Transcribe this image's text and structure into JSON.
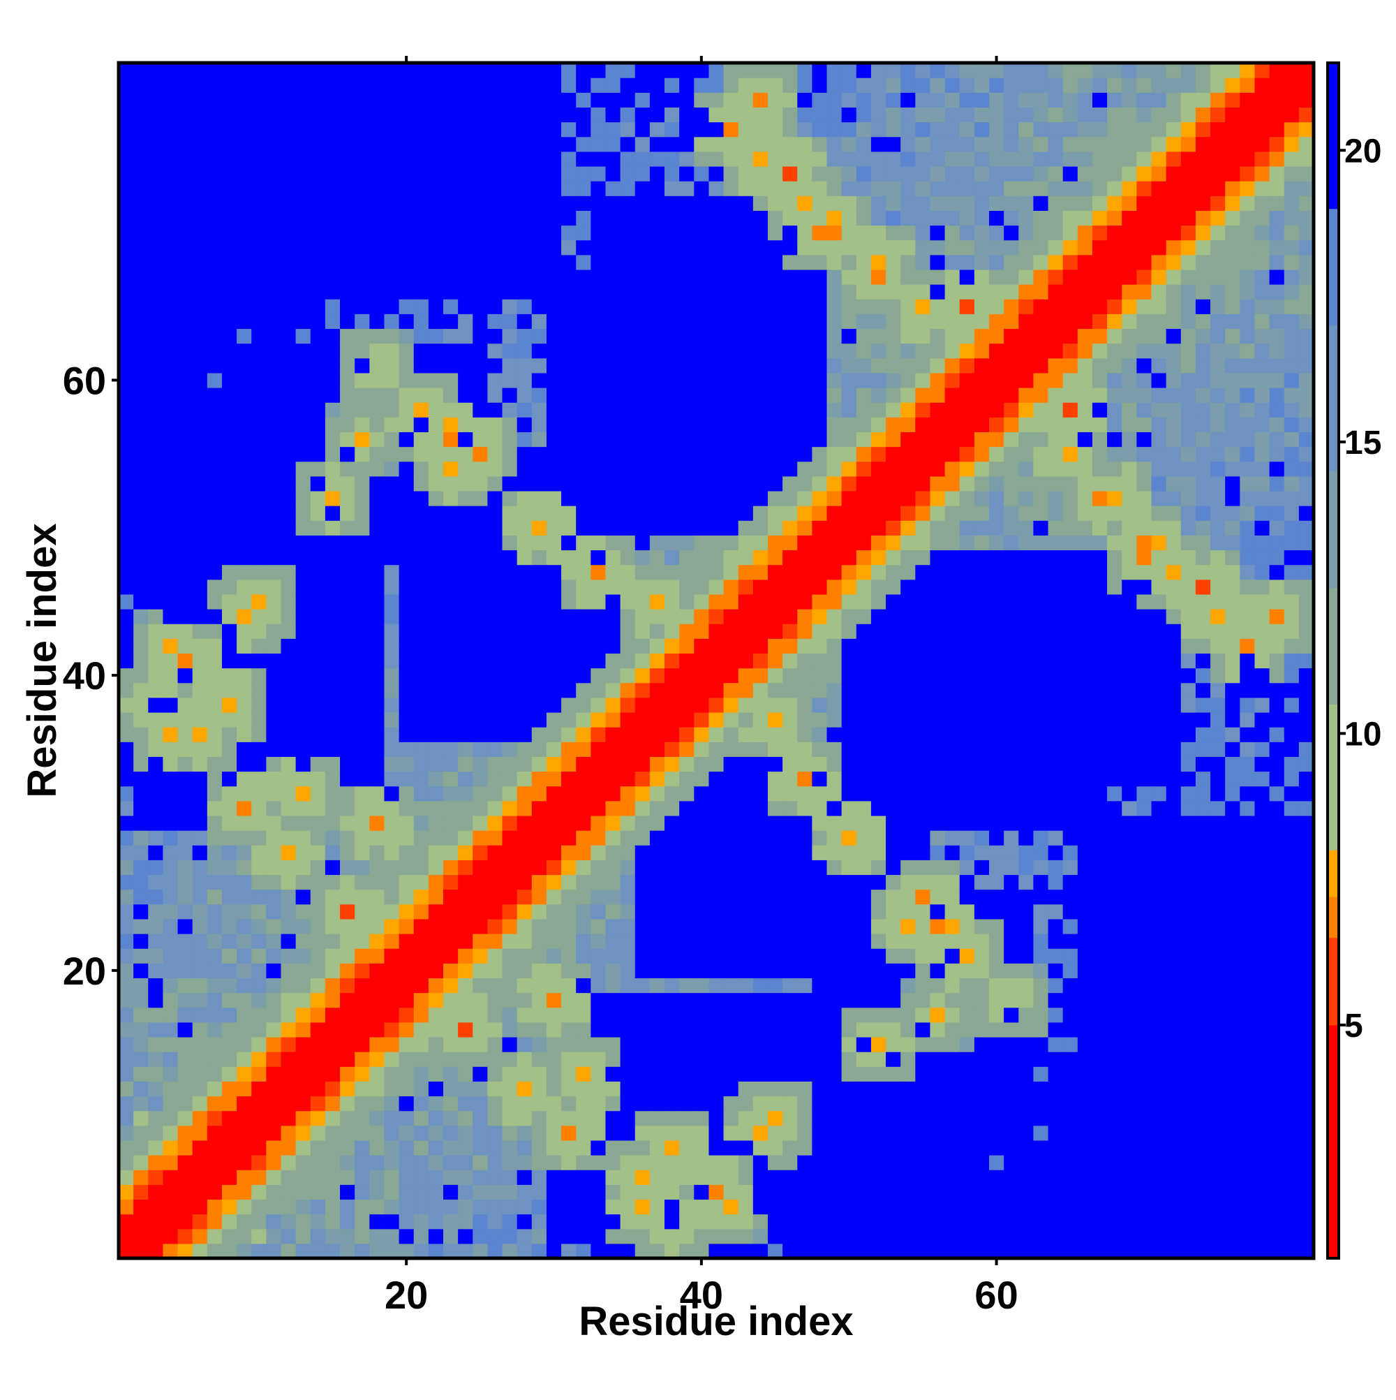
{
  "chart_data": {
    "type": "heatmap",
    "title": "",
    "xlabel": "Residue index",
    "ylabel": "Residue index",
    "n_residues": 81,
    "xlim": [
      1,
      81
    ],
    "ylim": [
      1,
      81
    ],
    "x_ticks": [
      20,
      40,
      60
    ],
    "y_ticks": [
      20,
      40,
      60
    ],
    "colorbar": {
      "ticks": [
        5,
        10,
        15,
        20
      ],
      "range": [
        1,
        21.5
      ],
      "bins": [
        {
          "max": 5,
          "color": "#ff0000"
        },
        {
          "max": 6.5,
          "color": "#ff4000"
        },
        {
          "max": 7.2,
          "color": "#ff8000"
        },
        {
          "max": 8,
          "color": "#ffa500"
        },
        {
          "max": 10.5,
          "color": "#a3bf88"
        },
        {
          "max": 12.5,
          "color": "#8ba894"
        },
        {
          "max": 14.5,
          "color": "#7b9eaa"
        },
        {
          "max": 17,
          "color": "#6f93c0"
        },
        {
          "max": 19,
          "color": "#5b85ce"
        },
        {
          "max": 21.5,
          "color": "#0000ff"
        }
      ]
    },
    "value_description": "Symmetric residue-residue distance map; values near 1-5 on the main diagonal (red), rising to >20 in distant blocks (blue). Helical-like structure with off-diagonal contact clusters near (20,50), (45,65), (55,30), (70,45).",
    "contact_hotspots": [
      {
        "i": 21,
        "j": 58,
        "d": 7
      },
      {
        "i": 23,
        "j": 56,
        "d": 6
      },
      {
        "i": 25,
        "j": 55,
        "d": 6.5
      },
      {
        "i": 17,
        "j": 56,
        "d": 7.5
      },
      {
        "i": 15,
        "j": 52,
        "d": 6.8
      },
      {
        "i": 10,
        "j": 45,
        "d": 7.3
      },
      {
        "i": 4,
        "j": 42,
        "d": 7.2
      },
      {
        "i": 3,
        "j": 38,
        "d": 6.6
      },
      {
        "i": 6,
        "j": 36,
        "d": 6.9
      },
      {
        "i": 9,
        "j": 31,
        "d": 6.7
      },
      {
        "i": 12,
        "j": 28,
        "d": 6.5
      },
      {
        "i": 16,
        "j": 24,
        "d": 6.4
      },
      {
        "i": 42,
        "j": 77,
        "d": 6
      },
      {
        "i": 44,
        "j": 75,
        "d": 6.3
      },
      {
        "i": 47,
        "j": 72,
        "d": 6.5
      },
      {
        "i": 49,
        "j": 70,
        "d": 6.2
      },
      {
        "i": 52,
        "j": 67,
        "d": 6.8
      },
      {
        "i": 55,
        "j": 65,
        "d": 6.4
      },
      {
        "i": 45,
        "j": 37,
        "d": 6.7
      },
      {
        "i": 47,
        "j": 33,
        "d": 6.6
      },
      {
        "i": 50,
        "j": 29,
        "d": 6.3
      },
      {
        "i": 54,
        "j": 23,
        "d": 6.5
      },
      {
        "i": 57,
        "j": 21,
        "d": 6.9
      },
      {
        "i": 61,
        "j": 18,
        "d": 7.2
      },
      {
        "i": 65,
        "j": 58,
        "d": 6.1
      },
      {
        "i": 68,
        "j": 52,
        "d": 6.4
      },
      {
        "i": 70,
        "j": 48,
        "d": 6.7
      },
      {
        "i": 74,
        "j": 46,
        "d": 6.2
      },
      {
        "i": 79,
        "j": 44,
        "d": 6.8
      },
      {
        "i": 30,
        "j": 18,
        "d": 6.2
      },
      {
        "i": 32,
        "j": 13,
        "d": 6.5
      },
      {
        "i": 38,
        "j": 8,
        "d": 6.6
      },
      {
        "i": 36,
        "j": 4,
        "d": 6.8
      },
      {
        "i": 41,
        "j": 5,
        "d": 6.4
      },
      {
        "i": 44,
        "j": 9,
        "d": 6.9
      }
    ]
  }
}
